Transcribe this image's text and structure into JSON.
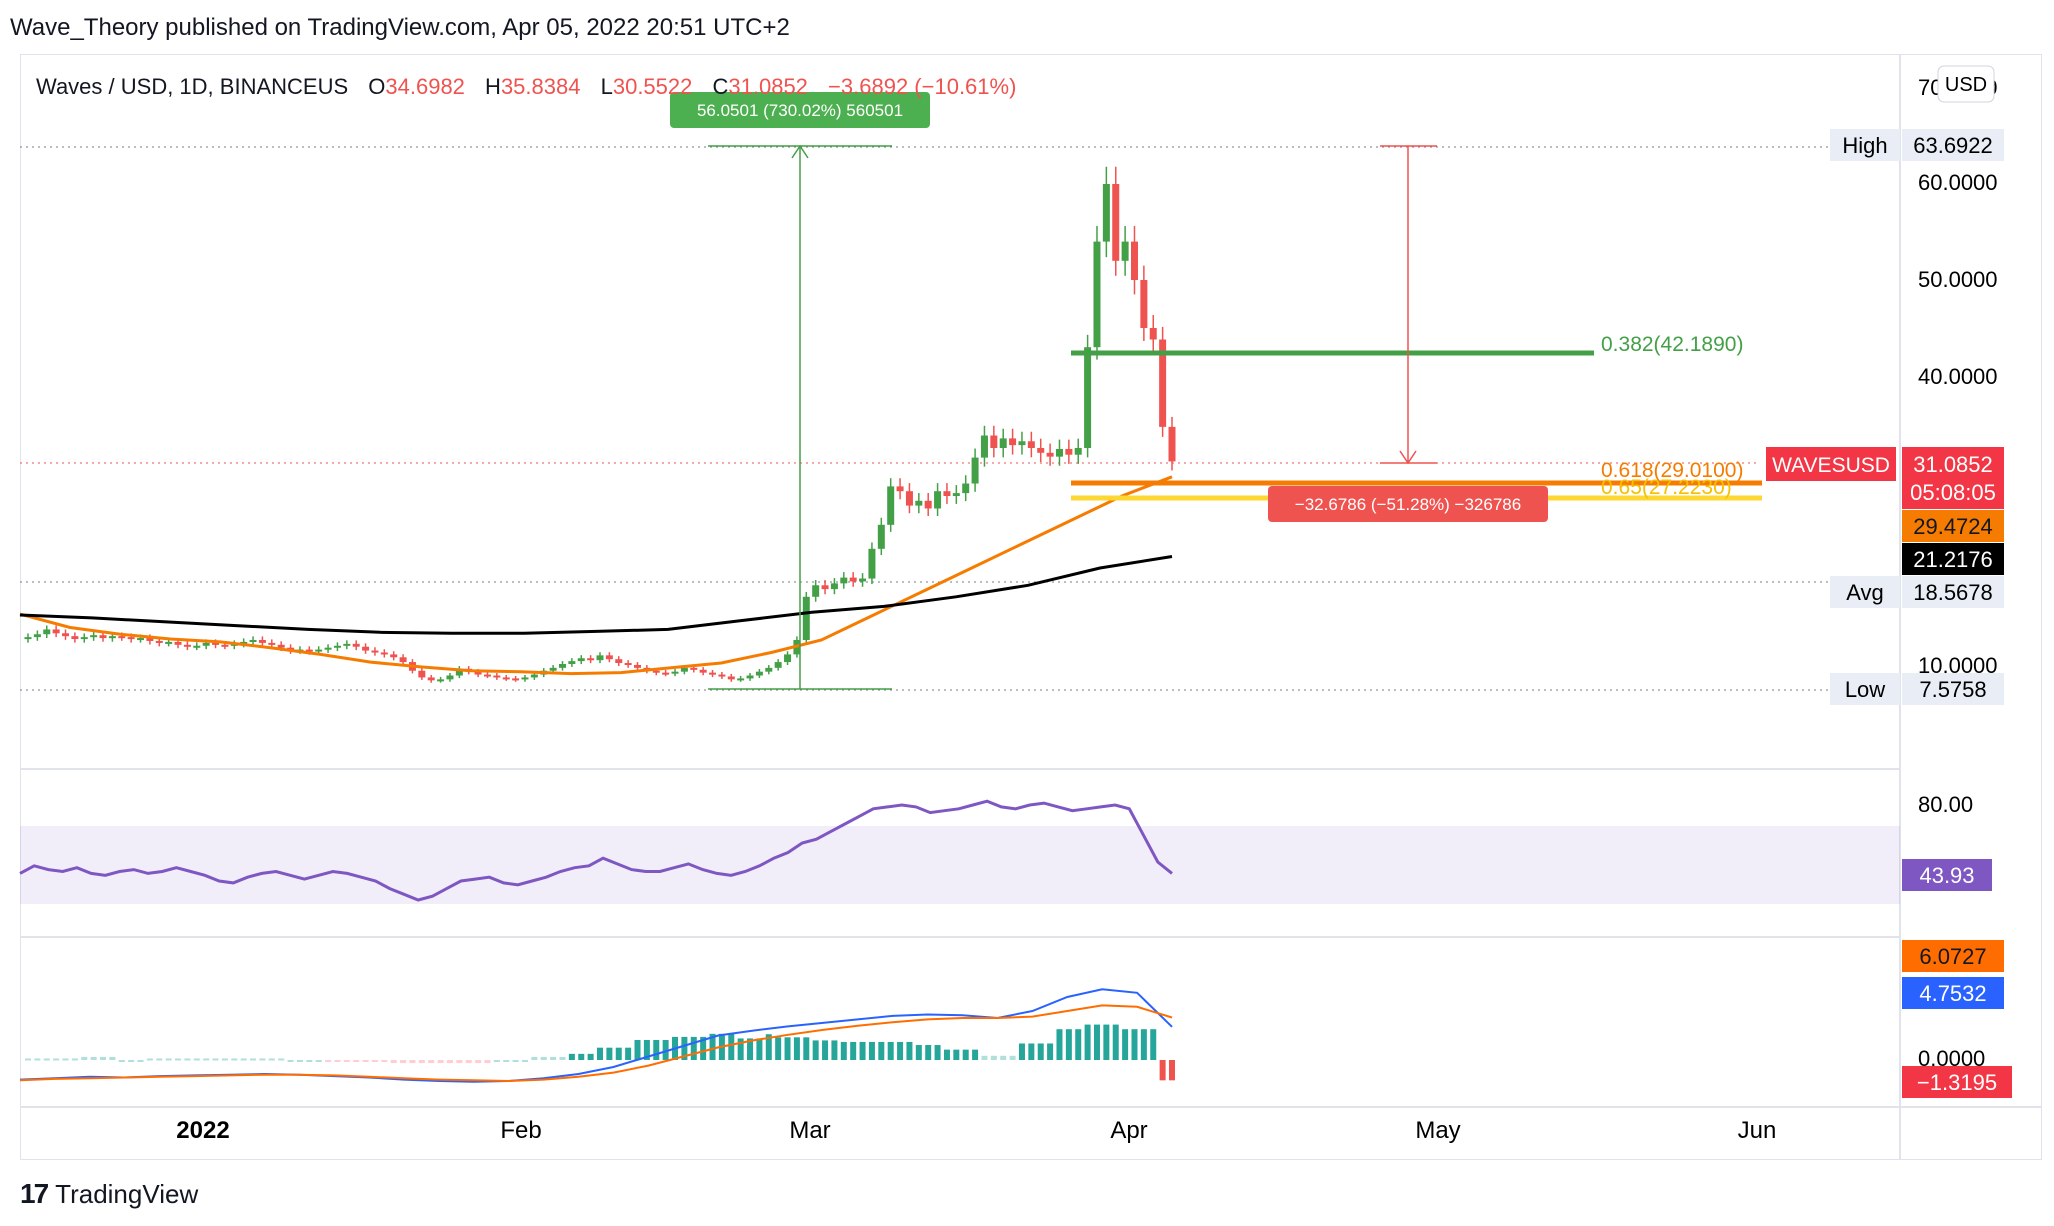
{
  "header": {
    "published": "Wave_Theory published on TradingView.com, Apr 05, 2022 20:51 UTC+2"
  },
  "legend": {
    "symbol": "Waves / USD, 1D, BINANCEUS",
    "o_label": "O",
    "o_value": "34.6982",
    "h_label": "H",
    "h_value": "35.8384",
    "l_label": "L",
    "l_value": "30.5522",
    "c_label": "C",
    "c_value": "31.0852",
    "change": "−3.6892 (−10.61%)"
  },
  "currency_button": "USD",
  "measure_up": "56.0501 (730.02%) 560501",
  "measure_down": "−32.6786 (−51.28%) −326786",
  "fib": {
    "f382": "0.382(42.1890)",
    "f618": "0.618(29.0100)",
    "f65": "0.65(27.2230)"
  },
  "price_labels": {
    "high_tag": "High",
    "high_value": "63.6922",
    "low_tag": "Low",
    "low_value": "7.5758",
    "avg_tag": "Avg",
    "avg_value": "18.5678",
    "symbol_tag": "WAVESUSD",
    "last_price": "31.0852",
    "countdown": "05:08:05",
    "ema_orange": "29.4724",
    "ema_black": "21.2176"
  },
  "price_axis": [
    "70.0000",
    "60.0000",
    "50.0000",
    "40.0000",
    "10.0000"
  ],
  "rsi": {
    "axis_80": "80.00",
    "value": "43.93"
  },
  "macd": {
    "axis_zero": "0.0000",
    "signal": "6.0727",
    "macd": "4.7532",
    "hist": "−1.3195"
  },
  "time_axis": [
    "2022",
    "Feb",
    "Mar",
    "Apr",
    "May",
    "Jun"
  ],
  "footer": {
    "brand": "TradingView"
  },
  "colors": {
    "up": "#26a69a",
    "up_green": "#43a047",
    "down": "#ef5350",
    "ema_orange": "#f57c00",
    "ema_black": "#000000",
    "rsi": "#7e57c2",
    "macd": "#2962ff",
    "signal": "#ff6d00",
    "fib382": "#43a047",
    "fib618": "#f57c00",
    "fib65": "#fbc02d"
  },
  "chart_data": {
    "type": "candlestick",
    "title": "Waves / USD, 1D, BINANCEUS",
    "ylim": [
      5,
      70
    ],
    "x_labels": [
      "2022",
      "Feb",
      "Mar",
      "Apr",
      "May",
      "Jun"
    ],
    "close": [
      12.8,
      13.1,
      13.6,
      13.2,
      12.9,
      12.6,
      12.8,
      13.0,
      12.7,
      12.9,
      12.8,
      12.6,
      12.7,
      12.4,
      12.2,
      12.3,
      12.0,
      11.8,
      11.9,
      12.2,
      12.0,
      11.9,
      12.1,
      12.3,
      12.5,
      12.2,
      12.0,
      11.7,
      11.4,
      11.5,
      11.3,
      11.5,
      11.7,
      11.9,
      12.1,
      11.8,
      11.4,
      11.2,
      11.0,
      10.7,
      10.2,
      9.3,
      8.6,
      8.3,
      8.4,
      8.8,
      9.5,
      9.2,
      8.9,
      8.8,
      8.6,
      8.5,
      8.4,
      8.6,
      8.9,
      9.3,
      9.6,
      10.0,
      10.3,
      10.6,
      10.4,
      10.9,
      10.5,
      10.1,
      9.9,
      9.6,
      9.3,
      9.1,
      9.0,
      9.2,
      9.6,
      9.4,
      9.1,
      8.9,
      8.7,
      8.4,
      8.5,
      8.8,
      9.2,
      9.6,
      10.2,
      11.0,
      12.5,
      17.0,
      18.2,
      17.8,
      18.4,
      19.0,
      18.6,
      18.9,
      22.0,
      24.5,
      28.5,
      28.0,
      26.5,
      27.0,
      26.2,
      28.0,
      27.5,
      27.8,
      28.8,
      31.5,
      33.8,
      32.5,
      33.5,
      32.8,
      33.2,
      32.5,
      32.0,
      31.6,
      32.4,
      31.8,
      32.5,
      43.0,
      54.0,
      60.0,
      52.0,
      54.0,
      50.0,
      45.0,
      43.8,
      34.7,
      31.1
    ],
    "ema_orange": [
      15.2,
      13.8,
      13.1,
      12.6,
      12.3,
      11.7,
      11.0,
      10.2,
      9.7,
      9.3,
      9.2,
      9.0,
      9.1,
      9.6,
      10.1,
      11.2,
      12.5,
      15.0,
      17.5,
      20.0,
      22.5,
      25.0,
      27.5,
      29.5
    ],
    "ema_black": [
      15.1,
      14.8,
      14.4,
      14.0,
      13.6,
      13.3,
      13.2,
      13.2,
      13.4,
      13.6,
      14.5,
      15.4,
      16.0,
      17.0,
      18.2,
      20.0,
      21.2
    ],
    "fib_levels": [
      {
        "ratio": 0.382,
        "value": 42.189
      },
      {
        "ratio": 0.618,
        "value": 29.01
      },
      {
        "ratio": 0.65,
        "value": 27.223
      }
    ],
    "high": 63.6922,
    "low": 7.5758,
    "avg": 18.5678,
    "rsi_last": 43.93,
    "macd_last": {
      "macd": 4.7532,
      "signal": 6.0727,
      "hist": -1.3195
    }
  }
}
